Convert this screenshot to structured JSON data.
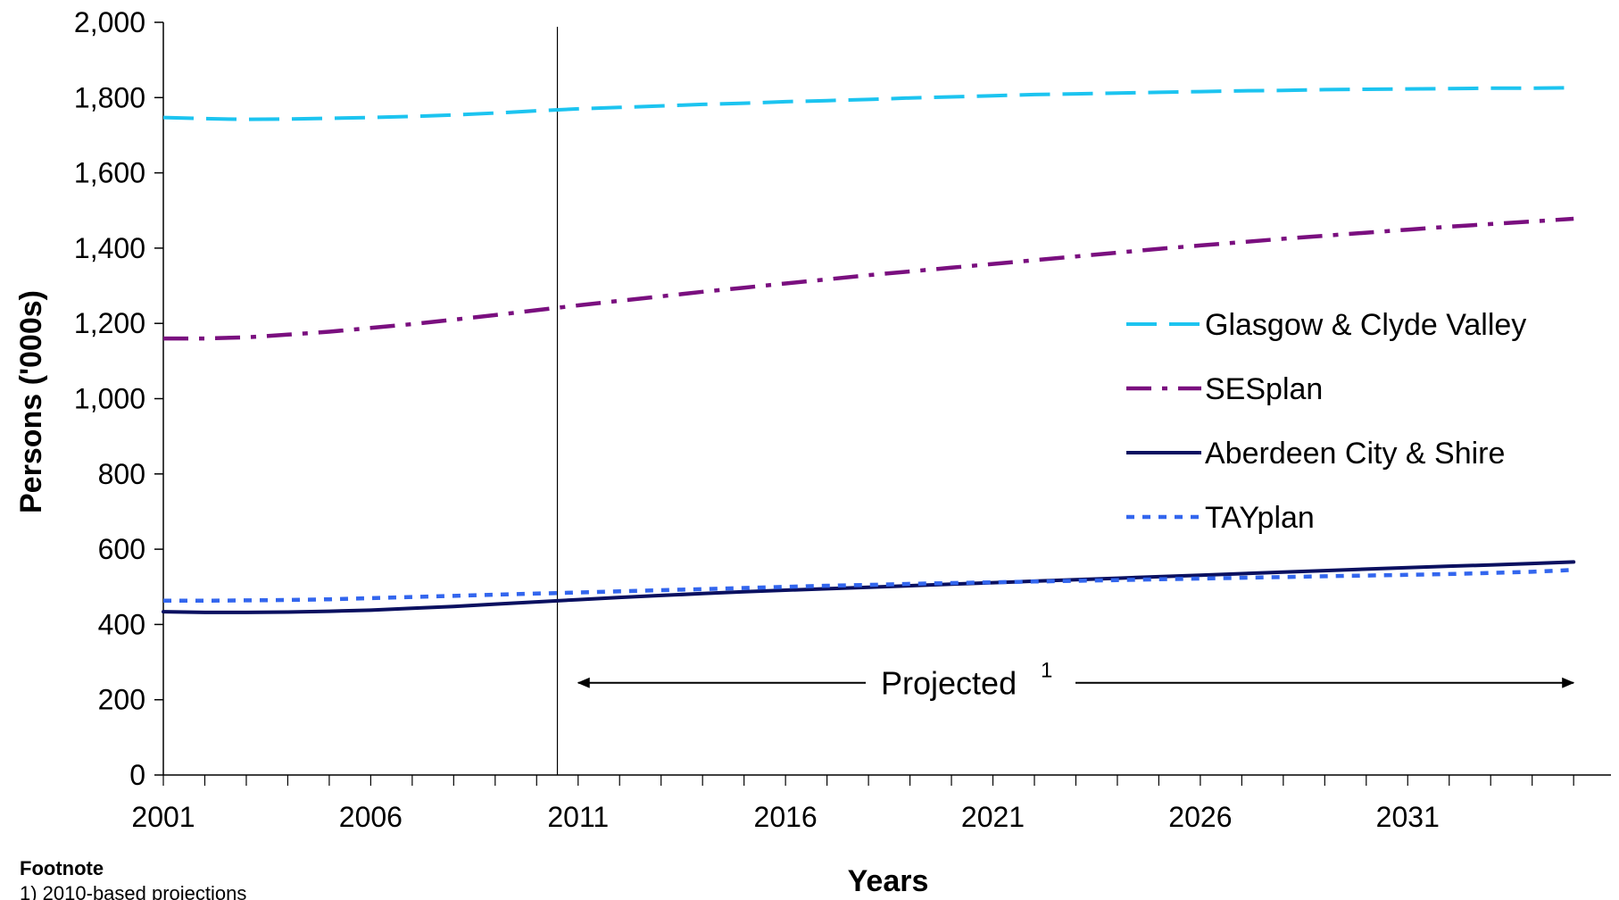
{
  "chart_data": {
    "type": "line",
    "xlabel": "Years",
    "ylabel": "Persons ('000s)",
    "xlim": [
      2001,
      2035
    ],
    "ylim": [
      0,
      2000
    ],
    "x_ticks": [
      2001,
      2006,
      2011,
      2016,
      2021,
      2026,
      2031
    ],
    "y_ticks": [
      0,
      200,
      400,
      600,
      800,
      1000,
      1200,
      1400,
      1600,
      1800,
      2000
    ],
    "y_tick_labels": [
      "0",
      "200",
      "400",
      "600",
      "800",
      "1,000",
      "1,200",
      "1,400",
      "1,600",
      "1,800",
      "2,000"
    ],
    "grid": false,
    "legend_position": "right",
    "x": [
      2001,
      2002,
      2003,
      2004,
      2005,
      2006,
      2007,
      2008,
      2009,
      2010,
      2011,
      2012,
      2013,
      2014,
      2015,
      2016,
      2017,
      2018,
      2019,
      2020,
      2021,
      2022,
      2023,
      2024,
      2025,
      2026,
      2027,
      2028,
      2029,
      2030,
      2031,
      2032,
      2033,
      2034,
      2035
    ],
    "series": [
      {
        "name": "Glasgow & Clyde Valley",
        "color": "#1cc4f0",
        "style": "long-dash",
        "values": [
          1747,
          1744,
          1742,
          1743,
          1745,
          1747,
          1750,
          1754,
          1759,
          1765,
          1770,
          1774,
          1778,
          1782,
          1785,
          1789,
          1792,
          1795,
          1799,
          1802,
          1805,
          1808,
          1810,
          1812,
          1814,
          1816,
          1818,
          1819,
          1821,
          1822,
          1823,
          1824,
          1825,
          1825,
          1826
        ]
      },
      {
        "name": "SESplan",
        "color": "#7a0f7f",
        "style": "dash-dot",
        "values": [
          1160,
          1160,
          1163,
          1170,
          1178,
          1188,
          1198,
          1210,
          1222,
          1235,
          1248,
          1260,
          1272,
          1284,
          1295,
          1306,
          1317,
          1328,
          1338,
          1348,
          1358,
          1368,
          1378,
          1388,
          1398,
          1407,
          1416,
          1425,
          1433,
          1441,
          1449,
          1457,
          1464,
          1471,
          1478
        ]
      },
      {
        "name": "Aberdeen City & Shire",
        "color": "#0a1060",
        "style": "solid",
        "values": [
          434,
          432,
          432,
          433,
          435,
          438,
          443,
          448,
          454,
          460,
          466,
          472,
          477,
          482,
          487,
          491,
          495,
          499,
          503,
          507,
          511,
          515,
          519,
          523,
          527,
          531,
          535,
          539,
          543,
          547,
          551,
          555,
          558,
          562,
          566
        ]
      },
      {
        "name": "TAYplan",
        "color": "#3366ee",
        "style": "dotted",
        "values": [
          463,
          463,
          464,
          465,
          467,
          470,
          473,
          476,
          479,
          482,
          485,
          488,
          491,
          494,
          497,
          500,
          503,
          505,
          508,
          510,
          512,
          514,
          516,
          518,
          520,
          522,
          524,
          526,
          528,
          530,
          532,
          534,
          537,
          540,
          545
        ]
      }
    ],
    "annotations": [
      {
        "text": "Projected",
        "superscript": "1",
        "from_x": 2011,
        "to_x": 2035,
        "y": 245
      }
    ],
    "vertical_marker_x": 2010.5
  },
  "footnote": {
    "title": "Footnote",
    "text": "1) 2010-based projections"
  }
}
